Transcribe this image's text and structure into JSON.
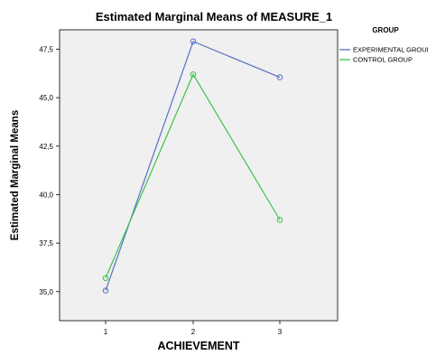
{
  "chart_data": {
    "type": "line",
    "title": "Estimated Marginal Means of MEASURE_1",
    "xlabel": "ACHIEVEMENT",
    "ylabel": "Estimated Marginal Means",
    "categories": [
      "1",
      "2",
      "3"
    ],
    "y_ticks": [
      "35,0",
      "37,5",
      "40,0",
      "42,5",
      "45,0",
      "47,5"
    ],
    "ylim": [
      33.5,
      48.5
    ],
    "legend_title": "GROUP",
    "legend_position": "right",
    "plot_background": "#f0f0f0",
    "series": [
      {
        "name": "EXPERIMENTAL GROUI",
        "values": [
          35.05,
          47.9,
          46.05
        ],
        "color": "#5a6fc6"
      },
      {
        "name": "CONTROL GROUP",
        "values": [
          35.7,
          46.2,
          38.7
        ],
        "color": "#3cc24a"
      }
    ]
  }
}
